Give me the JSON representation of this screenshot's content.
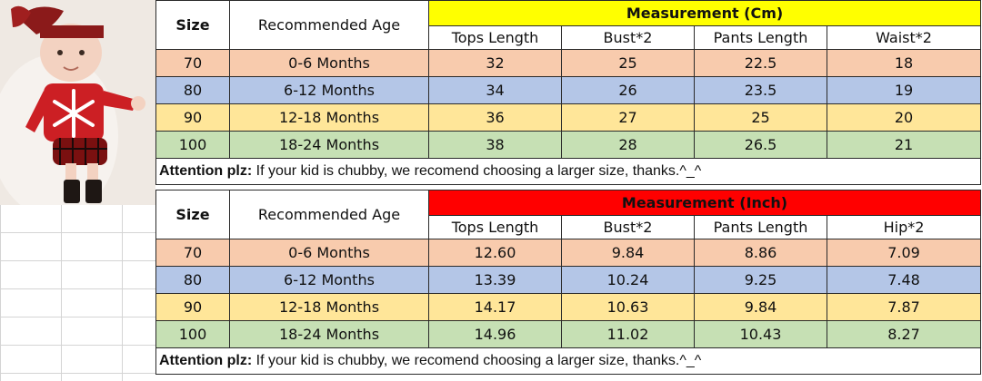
{
  "cm_table": {
    "headers": {
      "size": "Size",
      "age": "Recommended Age",
      "measurement": "Measurement (Cm)",
      "columns": [
        "Tops Length",
        "Bust*2",
        "Pants Length",
        "Waist*2"
      ]
    },
    "header_color": "#ffff00",
    "rows": [
      {
        "size": "70",
        "age": "0-6 Months",
        "values": [
          "32",
          "25",
          "22.5",
          "18"
        ],
        "color": "#f8cbad"
      },
      {
        "size": "80",
        "age": "6-12 Months",
        "values": [
          "34",
          "26",
          "23.5",
          "19"
        ],
        "color": "#b4c6e7"
      },
      {
        "size": "90",
        "age": "12-18 Months",
        "values": [
          "36",
          "27",
          "25",
          "20"
        ],
        "color": "#ffe699"
      },
      {
        "size": "100",
        "age": "18-24 Months",
        "values": [
          "38",
          "28",
          "26.5",
          "21"
        ],
        "color": "#c6e0b4"
      }
    ],
    "note_label": "Attention plz:",
    "note_text": " If your kid is chubby, we recomend choosing a larger size, thanks.^_^"
  },
  "inch_table": {
    "headers": {
      "size": "Size",
      "age": "Recommended Age",
      "measurement": "Measurement (Inch)",
      "columns": [
        "Tops Length",
        "Bust*2",
        "Pants Length",
        "Hip*2"
      ]
    },
    "header_color": "#ff0000",
    "rows": [
      {
        "size": "70",
        "age": "0-6 Months",
        "values": [
          "12.60",
          "9.84",
          "8.86",
          "7.09"
        ],
        "color": "#f8cbad"
      },
      {
        "size": "80",
        "age": "6-12 Months",
        "values": [
          "13.39",
          "10.24",
          "9.25",
          "7.48"
        ],
        "color": "#b4c6e7"
      },
      {
        "size": "90",
        "age": "12-18 Months",
        "values": [
          "14.17",
          "10.63",
          "9.84",
          "7.87"
        ],
        "color": "#ffe699"
      },
      {
        "size": "100",
        "age": "18-24 Months",
        "values": [
          "14.96",
          "11.02",
          "10.43",
          "8.27"
        ],
        "color": "#c6e0b4"
      }
    ],
    "note_label": "Attention plz:",
    "note_text": " If your kid is chubby, we recomend choosing a larger size, thanks.^_^"
  }
}
